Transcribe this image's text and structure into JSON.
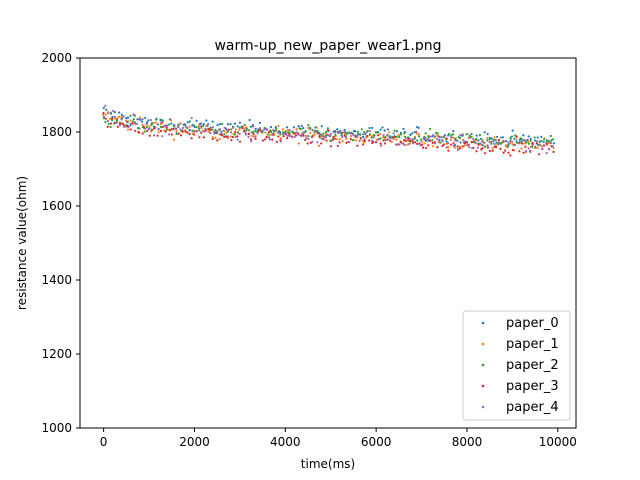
{
  "chart_data": {
    "type": "scatter",
    "title": "warm-up_new_paper_wear1.png",
    "xlabel": "time(ms)",
    "ylabel": "resistance value(ohm)",
    "xlim": [
      -520,
      10400
    ],
    "ylim": [
      1000,
      2000
    ],
    "x_ticks": [
      0,
      2000,
      4000,
      6000,
      8000,
      10000
    ],
    "y_ticks": [
      1000,
      1200,
      1400,
      1600,
      1800,
      2000
    ],
    "x_tick_labels": [
      "0",
      "2000",
      "4000",
      "6000",
      "8000",
      "10000"
    ],
    "y_tick_labels": [
      "1000",
      "1200",
      "1400",
      "1600",
      "1800",
      "2000"
    ],
    "legend_position": "lower-right",
    "grid": false,
    "x_step_ms": 50,
    "x_end_ms": 9900,
    "series": [
      {
        "name": "paper_0",
        "color": "#1f77b4",
        "start": 1855,
        "end": 1775,
        "noise": 14
      },
      {
        "name": "paper_1",
        "color": "#ff7f0e",
        "start": 1845,
        "end": 1762,
        "noise": 15
      },
      {
        "name": "paper_2",
        "color": "#2ca02c",
        "start": 1840,
        "end": 1772,
        "noise": 13
      },
      {
        "name": "paper_3",
        "color": "#d62728",
        "start": 1835,
        "end": 1755,
        "noise": 14
      },
      {
        "name": "paper_4",
        "color": "#9467bd",
        "start": 1850,
        "end": 1760,
        "noise": 15
      }
    ]
  }
}
